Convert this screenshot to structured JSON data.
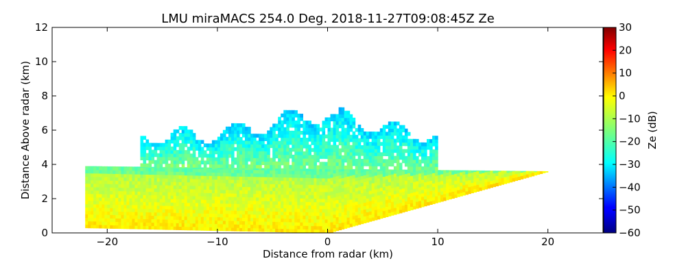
{
  "chart_data": {
    "type": "heatmap",
    "title": "LMU miraMACS 254.0 Deg. 2018-11-27T09:08:45Z  Ze",
    "xlabel": "Distance from radar (km)",
    "ylabel": "Distance Above radar  (km)",
    "xlim": [
      -25,
      25
    ],
    "ylim": [
      0,
      12
    ],
    "x_ticks": [
      -20,
      -10,
      0,
      10,
      20
    ],
    "y_ticks": [
      0,
      2,
      4,
      6,
      8,
      10,
      12
    ],
    "x_tick_labels": [
      "−20",
      "−10",
      "0",
      "10",
      "20"
    ],
    "y_tick_labels": [
      "0",
      "2",
      "4",
      "6",
      "8",
      "10",
      "12"
    ],
    "colorbar": {
      "label": "Ze (dB)",
      "range": [
        -60,
        30
      ],
      "ticks": [
        -60,
        -50,
        -40,
        -30,
        -20,
        -10,
        0,
        10,
        20,
        30
      ],
      "tick_labels": [
        "−60",
        "−50",
        "−40",
        "−30",
        "−20",
        "−10",
        "0",
        "10",
        "20",
        "30"
      ],
      "colormap": "jet"
    },
    "echo_region": {
      "description": "RHI scan reflectivity field",
      "lower_layer": {
        "left_x": -22,
        "left_bottom": 0.3,
        "left_top": 3.9,
        "right_x": 20,
        "right_top": 3.6,
        "value_range_db": [
          -15,
          2
        ],
        "typical_db": -5
      },
      "upper_cloud": {
        "x_range": [
          -17,
          10
        ],
        "top_km": 7.4,
        "bottom_km": 3.5,
        "value_range_db": [
          -35,
          -12
        ],
        "typical_db": -25
      }
    }
  }
}
